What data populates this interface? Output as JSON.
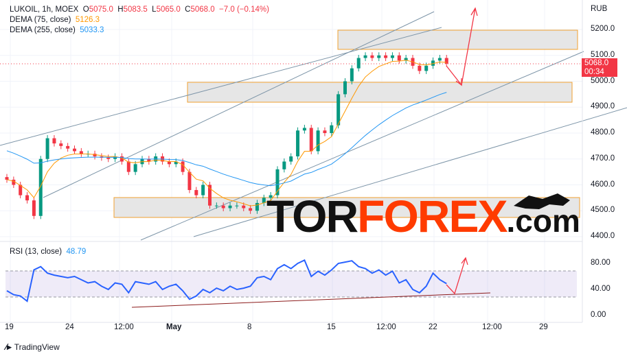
{
  "header": {
    "symbol": "LUKOIL, 1h, MOEX",
    "o_label": "O",
    "o": "5075.0",
    "h_label": "H",
    "h": "5083.5",
    "l_label": "L",
    "l": "5065.0",
    "c_label": "C",
    "c": "5068.0",
    "change": "−7.0 (−0.14%)"
  },
  "indicators": [
    {
      "label": "DEMA (75, close)",
      "value": "5126.3",
      "color": "#ff9800"
    },
    {
      "label": "DEMA (255, close)",
      "value": "5033.3",
      "color": "#2196f3"
    }
  ],
  "rsi": {
    "label": "RSI (13, close)",
    "value": "48.79",
    "ticks": [
      "80.00",
      "40.00",
      "0.00"
    ]
  },
  "price_axis": {
    "currency": "RUB",
    "ticks": [
      "5200.0",
      "5100.0",
      "5000.0",
      "4900.0",
      "4800.0",
      "4700.0",
      "4600.0",
      "4500.0",
      "4400.0"
    ],
    "last_price": "5068.0",
    "countdown": "00:34"
  },
  "time_axis": [
    "19",
    "24",
    "12:00",
    "May",
    "8",
    "15",
    "12:00",
    "22",
    "12:00",
    "29"
  ],
  "watermark": {
    "part1": "TOR",
    "part2": "FOREX",
    "part3": ".com"
  },
  "branding": "TradingView",
  "colors": {
    "up": "#089981",
    "down": "#f23645",
    "dema75": "#ff9800",
    "dema255": "#2196f3",
    "rsi": "#2962ff"
  },
  "closes": [
    4620,
    4600,
    4560,
    4540,
    4480,
    4700,
    4780,
    4760,
    4750,
    4740,
    4730,
    4720,
    4720,
    4710,
    4705,
    4700,
    4710,
    4690,
    4650,
    4680,
    4700,
    4690,
    4710,
    4690,
    4680,
    4690,
    4650,
    4580,
    4560,
    4600,
    4520,
    4520,
    4510,
    4520,
    4520,
    4510,
    4500,
    4530,
    4550,
    4560,
    4660,
    4690,
    4710,
    4810,
    4820,
    4730,
    4810,
    4800,
    4830,
    4950,
    5000,
    5050,
    5090,
    5100,
    5090,
    5100,
    5090,
    5100,
    5080,
    5090,
    5060,
    5040,
    5060,
    5080,
    5090,
    5068
  ],
  "rsi_values": [
    38,
    32,
    30,
    22,
    70,
    75,
    65,
    62,
    60,
    58,
    60,
    55,
    50,
    52,
    45,
    40,
    50,
    48,
    35,
    52,
    50,
    48,
    52,
    40,
    45,
    48,
    38,
    25,
    30,
    40,
    35,
    42,
    38,
    45,
    40,
    42,
    45,
    58,
    60,
    55,
    72,
    78,
    72,
    80,
    85,
    60,
    68,
    62,
    70,
    80,
    82,
    84,
    75,
    72,
    65,
    70,
    62,
    68,
    50,
    55,
    40,
    35,
    45,
    65,
    55,
    49
  ]
}
